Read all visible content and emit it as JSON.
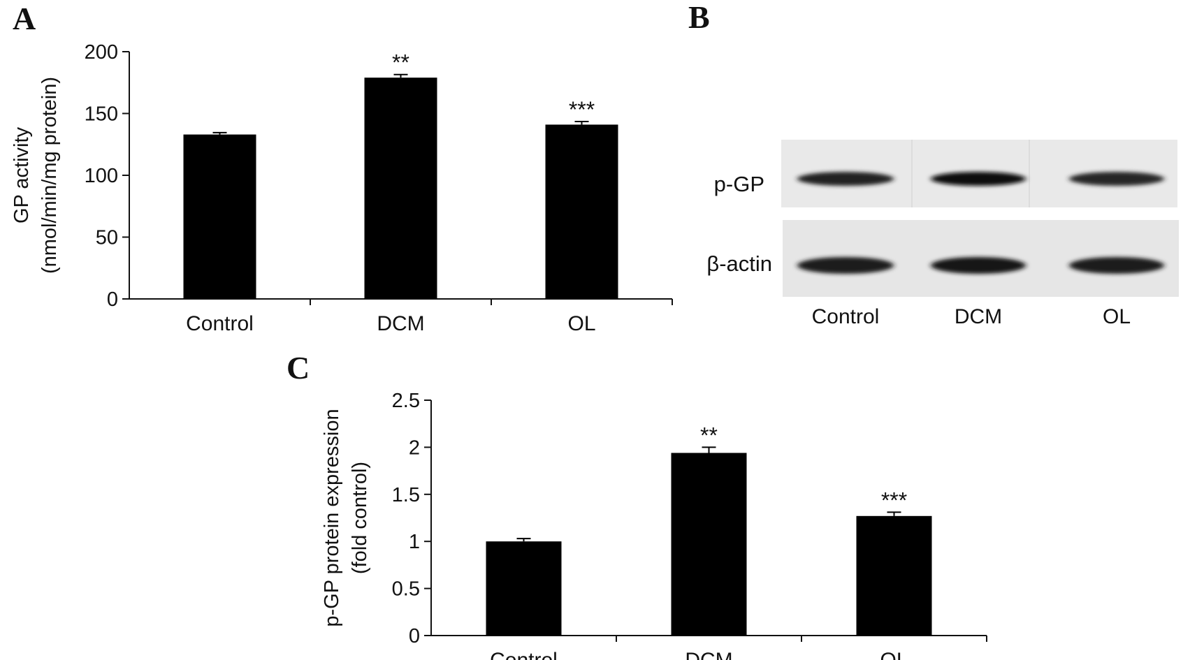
{
  "chart_data": [
    {
      "panel": "A",
      "type": "bar",
      "categories": [
        "Control",
        "DCM",
        "OL"
      ],
      "values": [
        133,
        179,
        141
      ],
      "errors": [
        1.5,
        2.5,
        2.5
      ],
      "significance": [
        "",
        "**",
        "***"
      ],
      "ylabel_lines": [
        "GP activity",
        "(nmol/min/mg protein)"
      ],
      "ylim": [
        0,
        200
      ],
      "yticks": [
        "0",
        "50",
        "100",
        "150",
        "200"
      ],
      "grid": false
    },
    {
      "panel": "C",
      "type": "bar",
      "categories": [
        "Control",
        "DCM",
        "OL"
      ],
      "values": [
        1.0,
        1.94,
        1.27
      ],
      "errors": [
        0.03,
        0.06,
        0.04
      ],
      "significance": [
        "",
        "**",
        "***"
      ],
      "ylabel_lines": [
        "p-GP protein expression",
        "(fold control)"
      ],
      "ylim": [
        0,
        2.5
      ],
      "yticks": [
        "0",
        "0.5",
        "1",
        "1.5",
        "2",
        "2.5"
      ],
      "grid": false
    }
  ],
  "blot": {
    "panel": "B",
    "rows": [
      "p-GP",
      "β-actin"
    ],
    "lanes": [
      "Control",
      "DCM",
      "OL"
    ],
    "band_intensity": [
      [
        0.75,
        1.0,
        0.7
      ],
      [
        0.85,
        0.95,
        0.85
      ]
    ]
  }
}
